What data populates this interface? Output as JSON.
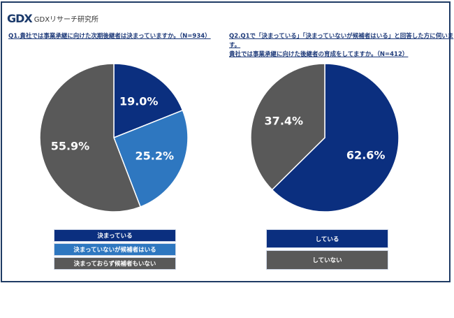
{
  "logo": {
    "mark": "GDX",
    "text": "GDXリサーチ研究所"
  },
  "colors": {
    "navy": "#0b2f7f",
    "blue": "#2e77c0",
    "gray": "#595959",
    "frame": "#1f3b64"
  },
  "chart_data": [
    {
      "type": "pie",
      "title": "Q1.貴社では事業承継に向けた次期後継者は決まっていますか。（N=934）",
      "categories": [
        "決まっている",
        "決まっていないが候補者はいる",
        "決まっておらず候補者もいない"
      ],
      "values": [
        19.0,
        25.2,
        55.9
      ],
      "labels": [
        "19.0%",
        "25.2%",
        "55.9%"
      ],
      "colors": [
        "#0b2f7f",
        "#2e77c0",
        "#595959"
      ],
      "legend": "bottom"
    },
    {
      "type": "pie",
      "title_lines": [
        "Q2.Q1で「決まっている」「決まっていないが候補者はいる」と回答した方に伺います。",
        "貴社では事業承継に向けた後継者の育成をしてますか。（N=412）"
      ],
      "categories": [
        "している",
        "していない"
      ],
      "values": [
        62.6,
        37.4
      ],
      "labels": [
        "62.6%",
        "37.4%"
      ],
      "colors": [
        "#0b2f7f",
        "#595959"
      ],
      "legend": "bottom"
    }
  ]
}
